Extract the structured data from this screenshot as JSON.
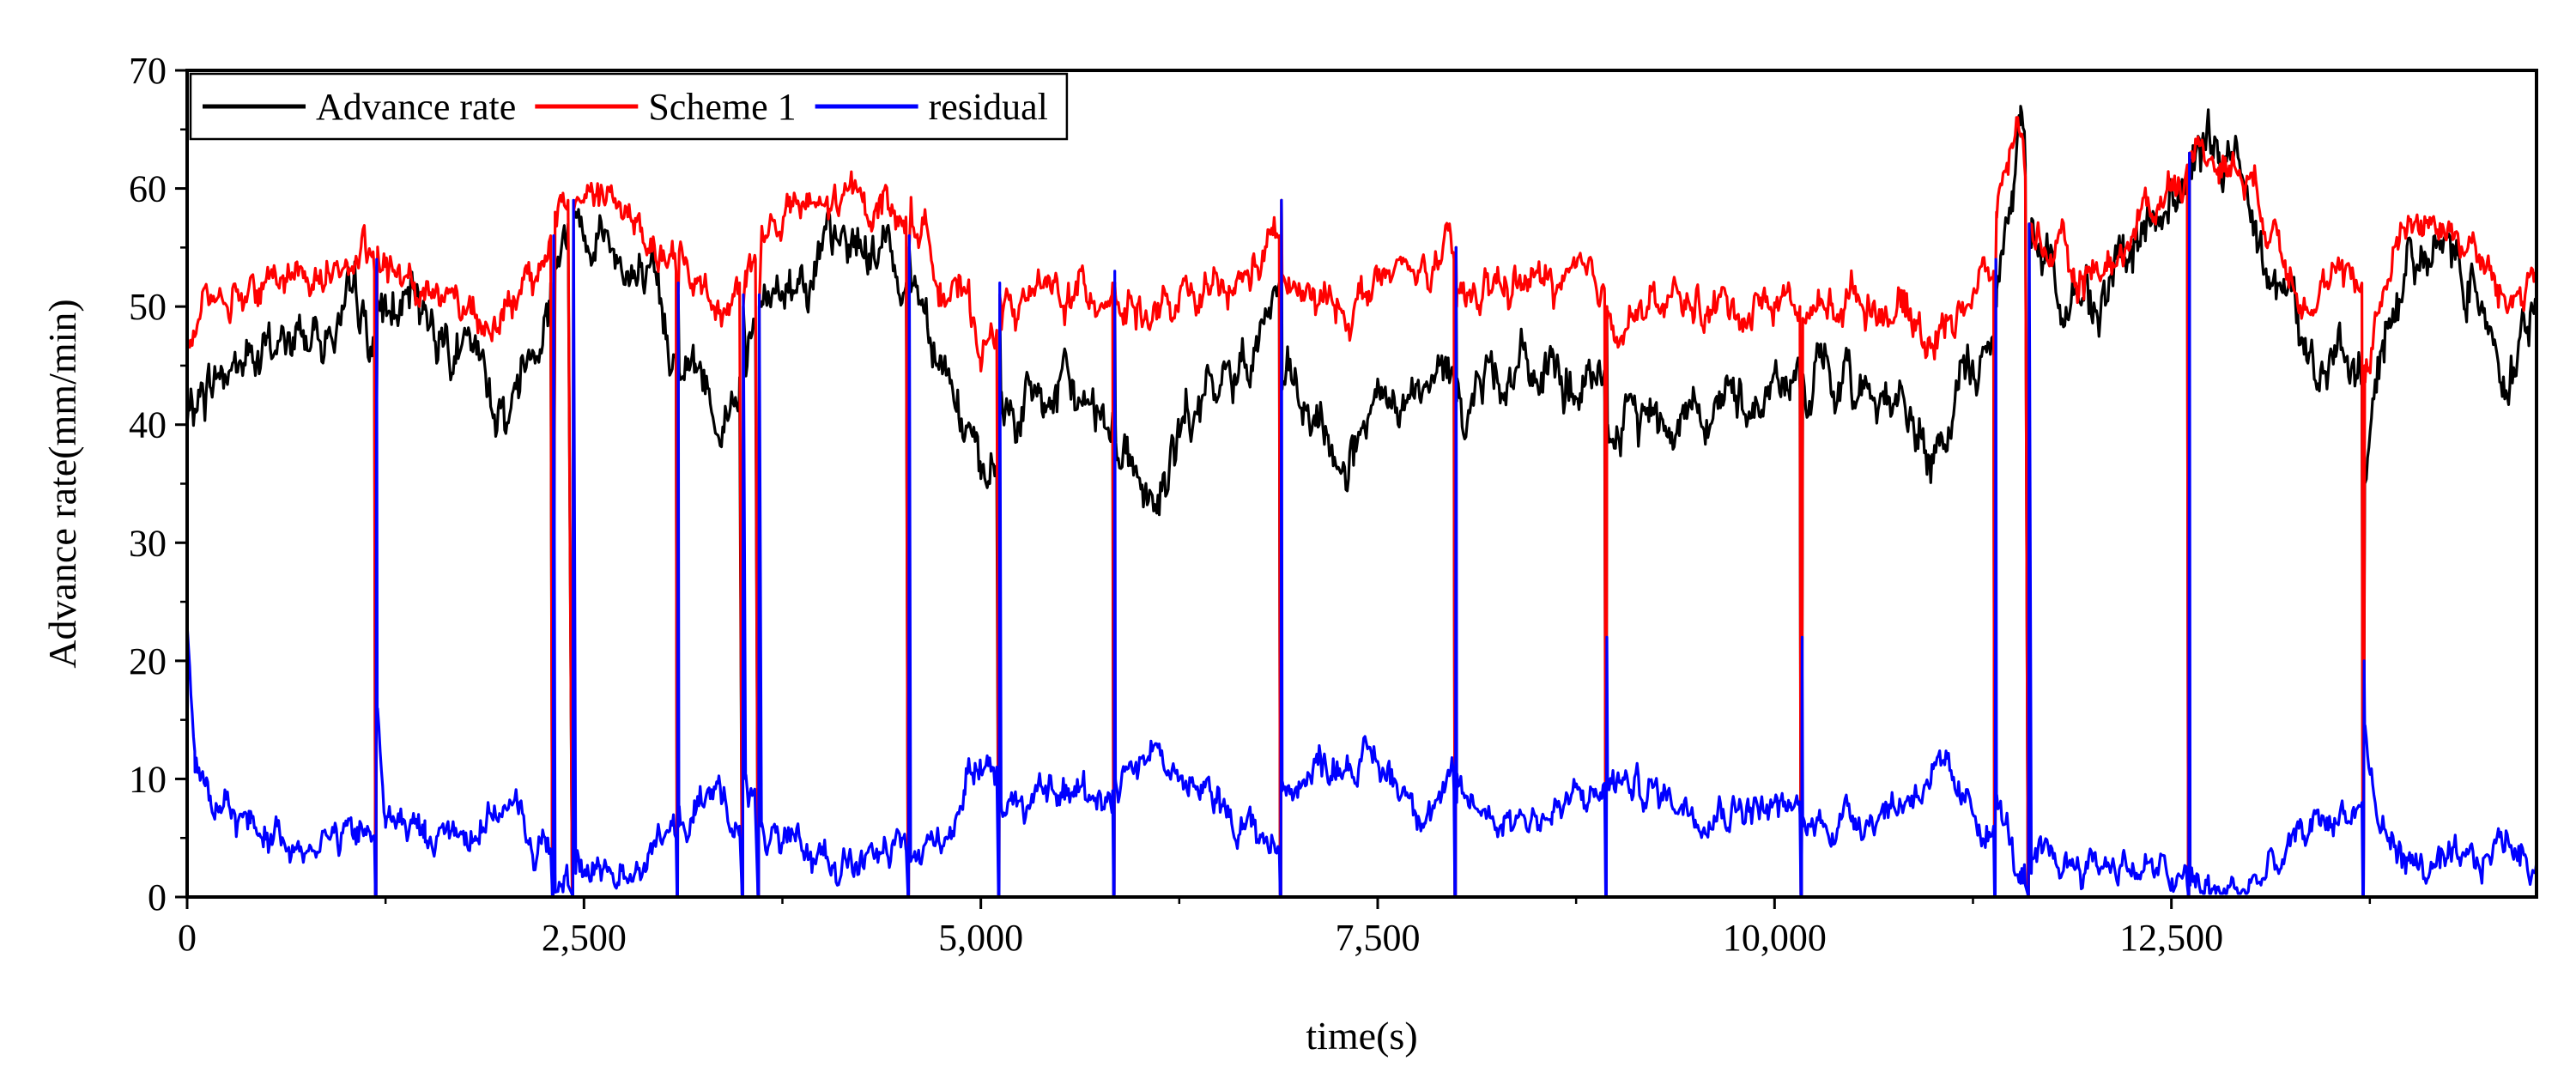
{
  "chart_data": {
    "type": "line",
    "title": "",
    "xlabel": "time(s)",
    "ylabel": "Advance rate(mm/min)",
    "xlim": [
      0,
      14800
    ],
    "ylim": [
      0,
      70
    ],
    "xticks": [
      0,
      2500,
      5000,
      7500,
      10000,
      12500
    ],
    "xtick_labels": [
      "0",
      "2,500",
      "5,000",
      "7,500",
      "10,000",
      "12,500"
    ],
    "yticks": [
      0,
      10,
      20,
      30,
      40,
      50,
      60,
      70
    ],
    "ytick_labels": [
      "0",
      "10",
      "20",
      "30",
      "40",
      "50",
      "60",
      "70"
    ],
    "grid": false,
    "legend_position": "top-left",
    "series": [
      {
        "name": "Advance rate",
        "color": "#000000",
        "segments": [
          {
            "x": [
              0,
              150,
              500,
              800,
              1100,
              1180
            ],
            "y": [
              40,
              44,
              46,
              48,
              49,
              46
            ]
          },
          {
            "x": [
              1200,
              1500,
              1800,
              2000,
              2200,
              2290
            ],
            "y": [
              49,
              50,
              45,
              41,
              48,
              52
            ]
          },
          {
            "x": [
              2320,
              2400
            ],
            "y": [
              54,
              57
            ]
          },
          {
            "x": [
              2450,
              2600,
              2800,
              3000,
              3080
            ],
            "y": [
              58,
              57,
              53,
              48,
              46
            ]
          },
          {
            "x": [
              3100,
              3200,
              3350,
              3480
            ],
            "y": [
              47,
              45,
              41,
              44
            ]
          },
          {
            "x": [
              3520,
              3580
            ],
            "y": [
              46,
              48
            ]
          },
          {
            "x": [
              3620,
              3800,
              4000,
              4200,
              4400,
              4530
            ],
            "y": [
              50,
              53,
              54,
              55,
              55,
              52
            ]
          },
          {
            "x": [
              4560,
              4750,
              4900,
              5000,
              5100
            ],
            "y": [
              53,
              47,
              40,
              34,
              36
            ]
          },
          {
            "x": [
              5130,
              5400,
              5650,
              5830
            ],
            "y": [
              41,
              42,
              42,
              41
            ]
          },
          {
            "x": [
              5850,
              6000,
              6100,
              6300,
              6600,
              6880
            ],
            "y": [
              40,
              36,
              33,
              40,
              44,
              52
            ]
          },
          {
            "x": [
              6900,
              7100,
              7300,
              7500,
              7800,
              7980
            ],
            "y": [
              43,
              39,
              37,
              40,
              42,
              44
            ]
          },
          {
            "x": [
              8000,
              8300,
              8600,
              8930
            ],
            "y": [
              42,
              45,
              44,
              42
            ]
          },
          {
            "x": [
              8950,
              9200,
              9500,
              9800,
              10100,
              10160
            ],
            "y": [
              39,
              41,
              42,
              42,
              44,
              43
            ]
          },
          {
            "x": [
              10180,
              10500,
              10800,
              11000,
              11200,
              11380
            ],
            "y": [
              43,
              44,
              42,
              36,
              44,
              47
            ]
          },
          {
            "x": [
              11400,
              11500,
              11550,
              11580
            ],
            "y": [
              50,
              60,
              67,
              62
            ]
          },
          {
            "x": [
              11620,
              11900,
              12200,
              12400,
              12600
            ],
            "y": [
              55,
              50,
              53,
              57,
              61
            ]
          },
          {
            "x": [
              12620,
              12800,
              13000,
              13200,
              13400,
              13700
            ],
            "y": [
              62,
              63,
              60,
              52,
              45,
              44
            ]
          },
          {
            "x": [
              13720,
              13800,
              14000,
              14200,
              14400,
              14600,
              14800
            ],
            "y": [
              35,
              44,
              55,
              55,
              53,
              45,
              50
            ]
          }
        ]
      },
      {
        "name": "Scheme 1",
        "color": "#ff0000",
        "segments": [
          {
            "x": [
              0,
              150,
              500,
              800,
              1100,
              1180
            ],
            "y": [
              47,
              51,
              52,
              53,
              54,
              53
            ]
          },
          {
            "x": [
              1200,
              1500,
              1800,
              2000,
              2200,
              2290
            ],
            "y": [
              53,
              52,
              50,
              49,
              52,
              56
            ]
          },
          {
            "x": [
              2320,
              2400
            ],
            "y": [
              58,
              59
            ]
          },
          {
            "x": [
              2450,
              2600,
              2800,
              3000,
              3080
            ],
            "y": [
              59,
              60,
              57,
              54,
              53
            ]
          },
          {
            "x": [
              3100,
              3200,
              3350,
              3480
            ],
            "y": [
              53,
              52,
              50,
              52
            ]
          },
          {
            "x": [
              3520,
              3580
            ],
            "y": [
              53,
              54
            ]
          },
          {
            "x": [
              3620,
              3800,
              4000,
              4200,
              4400,
              4530
            ],
            "y": [
              56,
              58,
              58,
              59,
              59,
              57
            ]
          },
          {
            "x": [
              4560,
              4750,
              4900,
              5000,
              5100
            ],
            "y": [
              58,
              53,
              50,
              47,
              48
            ]
          },
          {
            "x": [
              5130,
              5400,
              5650,
              5830
            ],
            "y": [
              50,
              51,
              51,
              52
            ]
          },
          {
            "x": [
              5850,
              6000,
              6100,
              6300,
              6600,
              6880
            ],
            "y": [
              51,
              50,
              49,
              50,
              51,
              56
            ]
          },
          {
            "x": [
              6900,
              7100,
              7300,
              7500,
              7800,
              7980
            ],
            "y": [
              52,
              50,
              50,
              52,
              53,
              54
            ]
          },
          {
            "x": [
              8000,
              8300,
              8600,
              8930
            ],
            "y": [
              50,
              52,
              52,
              51
            ]
          },
          {
            "x": [
              8950,
              9200,
              9500,
              9800,
              10100,
              10160
            ],
            "y": [
              49,
              50,
              50,
              50,
              51,
              50
            ]
          },
          {
            "x": [
              10180,
              10500,
              10800,
              11000,
              11200,
              11380
            ],
            "y": [
              49,
              51,
              50,
              47,
              51,
              53
            ]
          },
          {
            "x": [
              11400,
              11500,
              11550,
              11580
            ],
            "y": [
              58,
              64,
              66,
              61
            ]
          },
          {
            "x": [
              11620,
              11900,
              12200,
              12400,
              12600
            ],
            "y": [
              57,
              52,
              55,
              59,
              62
            ]
          },
          {
            "x": [
              12620,
              12800,
              13000,
              13200,
              13400,
              13700
            ],
            "y": [
              63,
              63,
              61,
              55,
              51,
              52
            ]
          },
          {
            "x": [
              13720,
              13800,
              14000,
              14200,
              14400,
              14600,
              14800
            ],
            "y": [
              45,
              50,
              58,
              57,
              55,
              50,
              53
            ]
          }
        ]
      },
      {
        "name": "residual",
        "color": "#0000ff",
        "segments": [
          {
            "x": [
              0,
              50,
              150,
              400,
              700,
              1000,
              1180
            ],
            "y": [
              23,
              12,
              7,
              6,
              5,
              5,
              5
            ]
          },
          {
            "x": [
              1200,
              1250,
              1500,
              1800,
              2000,
              2200,
              2290
            ],
            "y": [
              15,
              7,
              5,
              6,
              8,
              4,
              4
            ]
          },
          {
            "x": [
              2320,
              2400
            ],
            "y": [
              2,
              1
            ]
          },
          {
            "x": [
              2450,
              2600,
              2800,
              3000,
              3080
            ],
            "y": [
              2,
              2,
              3,
              5,
              5
            ]
          },
          {
            "x": [
              3100,
              3200,
              3350,
              3480
            ],
            "y": [
              6,
              7,
              9,
              6
            ]
          },
          {
            "x": [
              3520,
              3580
            ],
            "y": [
              10,
              7
            ]
          },
          {
            "x": [
              3620,
              3800,
              4000,
              4200,
              4400,
              4530
            ],
            "y": [
              6,
              3,
              4,
              3,
              3,
              4
            ]
          },
          {
            "x": [
              4560,
              4750,
              4900,
              5000,
              5100
            ],
            "y": [
              3,
              5,
              9,
              13,
              11
            ]
          },
          {
            "x": [
              5130,
              5400,
              5650,
              5830
            ],
            "y": [
              8,
              8,
              9,
              9
            ]
          },
          {
            "x": [
              5850,
              6000,
              6100,
              6300,
              6600,
              6880
            ],
            "y": [
              10,
              12,
              13,
              9,
              7,
              4
            ]
          },
          {
            "x": [
              6900,
              7100,
              7300,
              7500,
              7800,
              7980
            ],
            "y": [
              9,
              11,
              12,
              11,
              8,
              9
            ]
          },
          {
            "x": [
              8000,
              8300,
              8600,
              8930
            ],
            "y": [
              8,
              7,
              7,
              9
            ]
          },
          {
            "x": [
              8950,
              9200,
              9500,
              9800,
              10100,
              10160
            ],
            "y": [
              10,
              9,
              8,
              8,
              7,
              7
            ]
          },
          {
            "x": [
              10180,
              10500,
              10800,
              11000,
              11200,
              11380
            ],
            "y": [
              6,
              7,
              8,
              11,
              7,
              6
            ]
          },
          {
            "x": [
              11400,
              11500,
              11550,
              11580
            ],
            "y": [
              8,
              4,
              1,
              1
            ]
          },
          {
            "x": [
              11620,
              11900,
              12200,
              12400,
              12600
            ],
            "y": [
              2,
              3,
              3,
              2,
              1
            ]
          },
          {
            "x": [
              12620,
              12800,
              13000,
              13200,
              13400,
              13700
            ],
            "y": [
              1,
              0,
              1,
              3,
              6,
              8
            ]
          },
          {
            "x": [
              13720,
              13800,
              14000,
              14200,
              14400,
              14600,
              14800
            ],
            "y": [
              14,
              6,
              3,
              2,
              2,
              5,
              3
            ]
          }
        ]
      }
    ],
    "restarts": [
      {
        "x": 1190,
        "advance_peak": 41,
        "scheme_peak": 41,
        "residual_peak": 54
      },
      {
        "x": 2305,
        "advance_peak": 22,
        "scheme_peak": 22,
        "residual_peak": 56
      },
      {
        "x": 2430,
        "advance_peak": 58,
        "scheme_peak": 58,
        "residual_peak": 59
      },
      {
        "x": 3090,
        "advance_peak": 51,
        "scheme_peak": 51,
        "residual_peak": 52
      },
      {
        "x": 3500,
        "advance_peak": 50,
        "scheme_peak": 50,
        "residual_peak": 51
      },
      {
        "x": 3600,
        "advance_peak": 50,
        "scheme_peak": 50,
        "residual_peak": 51
      },
      {
        "x": 4545,
        "advance_peak": 55,
        "scheme_peak": 55,
        "residual_peak": 56
      },
      {
        "x": 5115,
        "advance_peak": 51,
        "scheme_peak": 51,
        "residual_peak": 52
      },
      {
        "x": 5840,
        "advance_peak": 52,
        "scheme_peak": 52,
        "residual_peak": 53
      },
      {
        "x": 6890,
        "advance_peak": 59,
        "scheme_peak": 59,
        "residual_peak": 59
      },
      {
        "x": 7990,
        "advance_peak": 55,
        "scheme_peak": 55,
        "residual_peak": 55
      },
      {
        "x": 8940,
        "advance_peak": 50,
        "scheme_peak": 50,
        "residual_peak": 22
      },
      {
        "x": 10170,
        "advance_peak": 22,
        "scheme_peak": 22,
        "residual_peak": 22
      },
      {
        "x": 11390,
        "advance_peak": 54,
        "scheme_peak": 54,
        "residual_peak": 54
      },
      {
        "x": 11600,
        "advance_peak": 57,
        "scheme_peak": 57,
        "residual_peak": 57
      },
      {
        "x": 12610,
        "advance_peak": 63,
        "scheme_peak": 63,
        "residual_peak": 63
      },
      {
        "x": 13710,
        "advance_peak": 20,
        "scheme_peak": 20,
        "residual_peak": 20
      }
    ],
    "noise": {
      "seed": 7,
      "amplitude": [
        3.0,
        2.2,
        2.0
      ]
    }
  }
}
